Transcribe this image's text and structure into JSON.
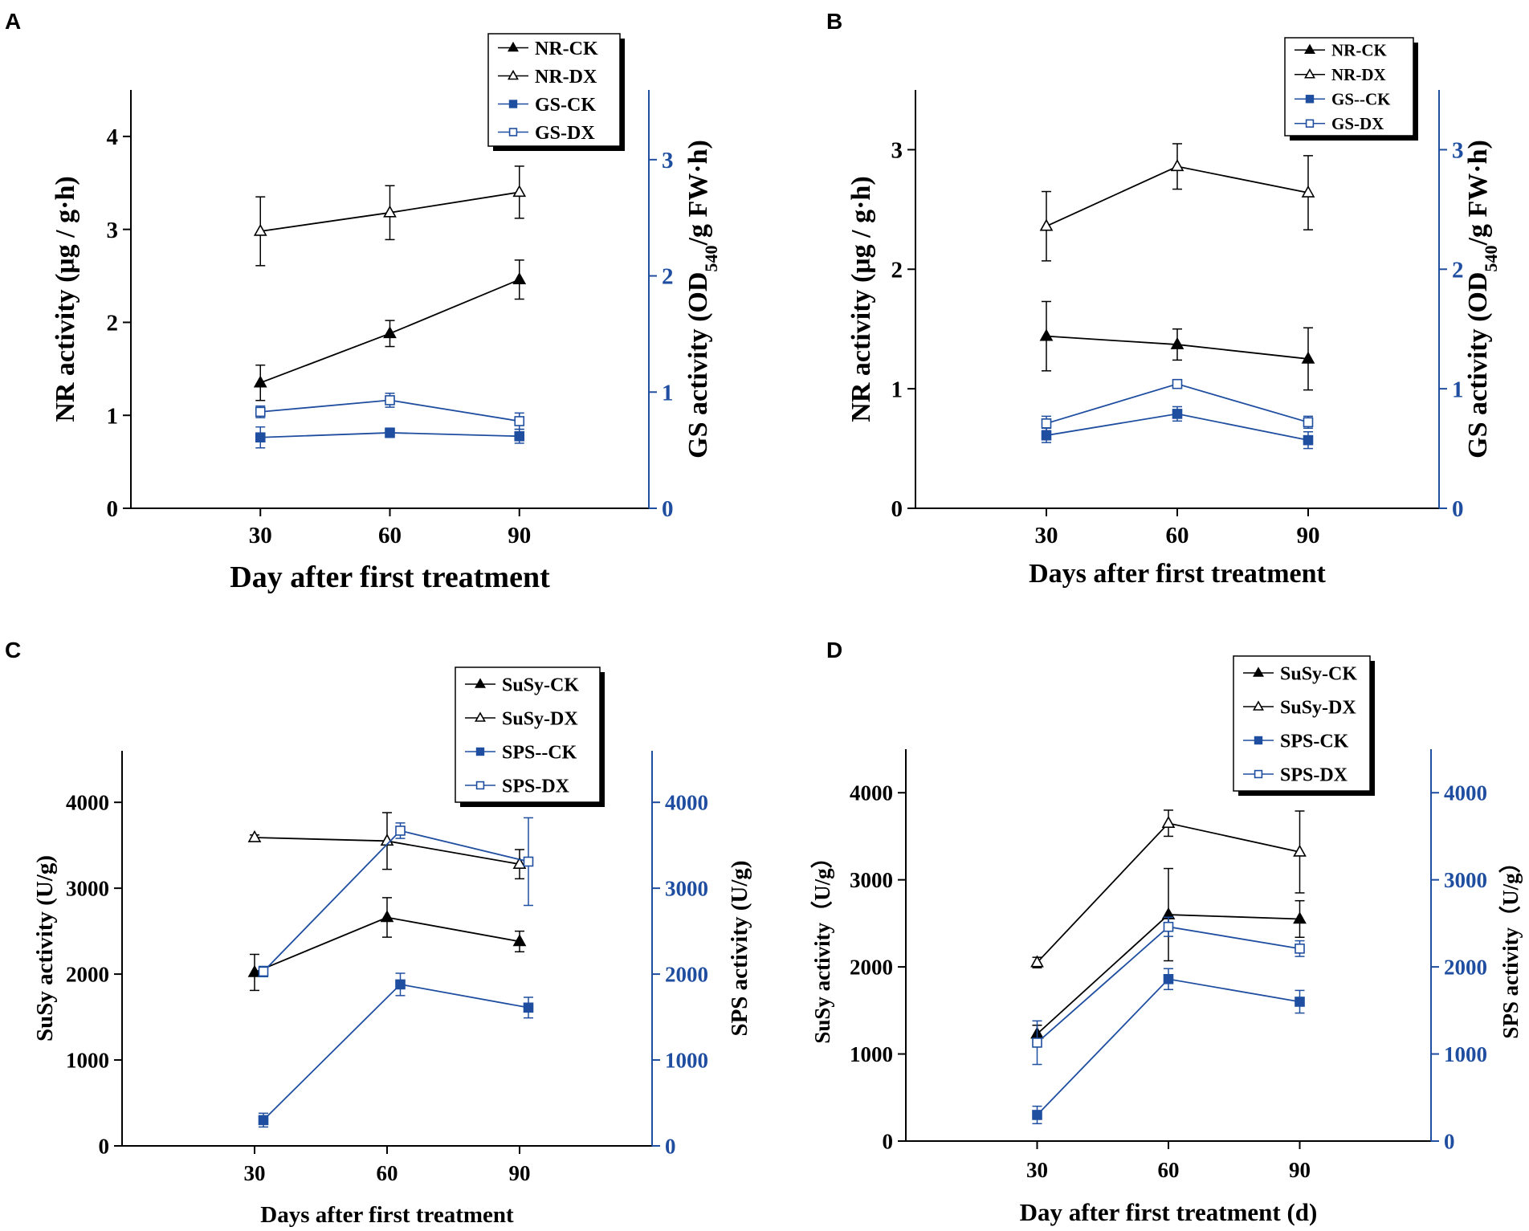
{
  "figure": {
    "colors": {
      "primary": "#000000",
      "secondary": "#1f4ea0"
    }
  },
  "chart_data": [
    {
      "panel": "A",
      "type": "line",
      "xlabel": "Day after first treatment",
      "ylabel": "NR activity (μg / g·h)",
      "y2label": {
        "main": "GS activity (OD",
        "sub": "540",
        "rest": "/g FW·h)"
      },
      "x": [
        30,
        60,
        90
      ],
      "xlim": [
        0,
        120
      ],
      "ylim": [
        0,
        4.5
      ],
      "y2lim": [
        0,
        3.6
      ],
      "yticks": [
        0,
        1,
        2,
        3,
        4
      ],
      "y2ticks": [
        0,
        1,
        2,
        3
      ],
      "xticks": [
        30,
        60,
        90
      ],
      "legend_placement": "top-right",
      "series": [
        {
          "name": "NR-CK",
          "axis": "left",
          "marker": "triangle-filled",
          "color": "#000000",
          "values": [
            1.35,
            1.88,
            2.46
          ],
          "errors": [
            0.19,
            0.14,
            0.21
          ]
        },
        {
          "name": "NR-DX",
          "axis": "left",
          "marker": "triangle-open",
          "color": "#000000",
          "values": [
            2.98,
            3.18,
            3.4
          ],
          "errors": [
            0.37,
            0.29,
            0.28
          ]
        },
        {
          "name": "GS-CK",
          "axis": "right",
          "marker": "square-filled",
          "color": "#1f4ea0",
          "values": [
            0.61,
            0.65,
            0.62
          ],
          "errors": [
            0.09,
            0.04,
            0.06
          ]
        },
        {
          "name": "GS-DX",
          "axis": "right",
          "marker": "square-open",
          "color": "#1f4ea0",
          "values": [
            0.83,
            0.93,
            0.75
          ],
          "errors": [
            0.05,
            0.06,
            0.07
          ]
        }
      ]
    },
    {
      "panel": "B",
      "type": "line",
      "xlabel": "Days after first treatment",
      "ylabel": "NR activity (μg / g·h)",
      "y2label": {
        "main": "GS activity (OD",
        "sub": "540",
        "rest": "/g FW·h)"
      },
      "x": [
        30,
        60,
        90
      ],
      "xlim": [
        0,
        120
      ],
      "ylim": [
        0,
        3.5
      ],
      "y2lim": [
        0,
        3.5
      ],
      "yticks": [
        0,
        1,
        2,
        3
      ],
      "y2ticks": [
        0,
        1,
        2,
        3
      ],
      "xticks": [
        30,
        60,
        90
      ],
      "legend_placement": "top-right",
      "series": [
        {
          "name": "NR-CK",
          "axis": "left",
          "marker": "triangle-filled",
          "color": "#000000",
          "values": [
            1.44,
            1.37,
            1.25
          ],
          "errors": [
            0.29,
            0.13,
            0.26
          ]
        },
        {
          "name": "NR-DX",
          "axis": "left",
          "marker": "triangle-open",
          "color": "#000000",
          "values": [
            2.36,
            2.86,
            2.64
          ],
          "errors": [
            0.29,
            0.19,
            0.31
          ]
        },
        {
          "name": "GS--CK",
          "axis": "right",
          "marker": "square-filled",
          "color": "#1f4ea0",
          "values": [
            0.61,
            0.79,
            0.57
          ],
          "errors": [
            0.06,
            0.06,
            0.07
          ]
        },
        {
          "name": "GS-DX",
          "axis": "right",
          "marker": "square-open",
          "color": "#1f4ea0",
          "values": [
            0.71,
            1.04,
            0.72
          ],
          "errors": [
            0.06,
            0.03,
            0.05
          ]
        }
      ]
    },
    {
      "panel": "C",
      "type": "line",
      "xlabel": "Days after first treatment",
      "ylabel": "SuSy activity (U/g)",
      "y2label": {
        "main": "SPS activity (U/g)",
        "sub": "",
        "rest": ""
      },
      "x": [
        30,
        60,
        90
      ],
      "xlim": [
        0,
        120
      ],
      "ylim": [
        0,
        4600
      ],
      "y2lim": [
        0,
        4600
      ],
      "yticks": [
        0,
        1000,
        2000,
        3000,
        4000
      ],
      "y2ticks": [
        0,
        1000,
        2000,
        3000,
        4000
      ],
      "xticks": [
        30,
        60,
        90
      ],
      "legend_placement": "top-right",
      "series": [
        {
          "name": "SuSy-CK",
          "axis": "left",
          "marker": "triangle-filled",
          "color": "#000000",
          "x": [
            30,
            60,
            90
          ],
          "values": [
            2020,
            2660,
            2380
          ],
          "errors": [
            210,
            230,
            120
          ]
        },
        {
          "name": "SuSy-DX",
          "axis": "left",
          "marker": "triangle-open",
          "color": "#000000",
          "x": [
            30,
            60,
            90
          ],
          "values": [
            3590,
            3550,
            3280
          ],
          "errors": [
            30,
            330,
            170
          ]
        },
        {
          "name": "SPS--CK",
          "axis": "right",
          "marker": "square-filled",
          "color": "#1f4ea0",
          "x": [
            32,
            63,
            92
          ],
          "values": [
            300,
            1880,
            1610
          ],
          "errors": [
            80,
            130,
            120
          ]
        },
        {
          "name": "SPS-DX",
          "axis": "right",
          "marker": "square-open",
          "color": "#1f4ea0",
          "x": [
            32,
            63,
            92
          ],
          "values": [
            2030,
            3670,
            3310
          ],
          "errors": [
            60,
            90,
            510
          ]
        }
      ]
    },
    {
      "panel": "D",
      "type": "line",
      "xlabel": "Day after first treatment (d)",
      "ylabel": "SuSy activity（U/g）",
      "y2label": {
        "main": "SPS activity（U/g）",
        "sub": "",
        "rest": ""
      },
      "x": [
        30,
        60,
        90
      ],
      "xlim": [
        0,
        120
      ],
      "ylim": [
        0,
        4500
      ],
      "y2lim": [
        0,
        4500
      ],
      "yticks": [
        0,
        1000,
        2000,
        3000,
        4000
      ],
      "y2ticks": [
        0,
        1000,
        2000,
        3000,
        4000
      ],
      "xticks": [
        30,
        60,
        90
      ],
      "legend_placement": "top-right",
      "series": [
        {
          "name": "SuSy-CK",
          "axis": "left",
          "marker": "triangle-filled",
          "color": "#000000",
          "values": [
            1230,
            2600,
            2550
          ],
          "errors": [
            100,
            530,
            210
          ]
        },
        {
          "name": "SuSy-DX",
          "axis": "left",
          "marker": "triangle-open",
          "color": "#000000",
          "values": [
            2050,
            3650,
            3320
          ],
          "errors": [
            60,
            150,
            470
          ]
        },
        {
          "name": "SPS-CK",
          "axis": "right",
          "marker": "square-filled",
          "color": "#1f4ea0",
          "values": [
            300,
            1860,
            1600
          ],
          "errors": [
            100,
            120,
            130
          ]
        },
        {
          "name": "SPS-DX",
          "axis": "right",
          "marker": "square-open",
          "color": "#1f4ea0",
          "values": [
            1130,
            2460,
            2210
          ],
          "errors": [
            250,
            110,
            90
          ]
        }
      ]
    }
  ]
}
